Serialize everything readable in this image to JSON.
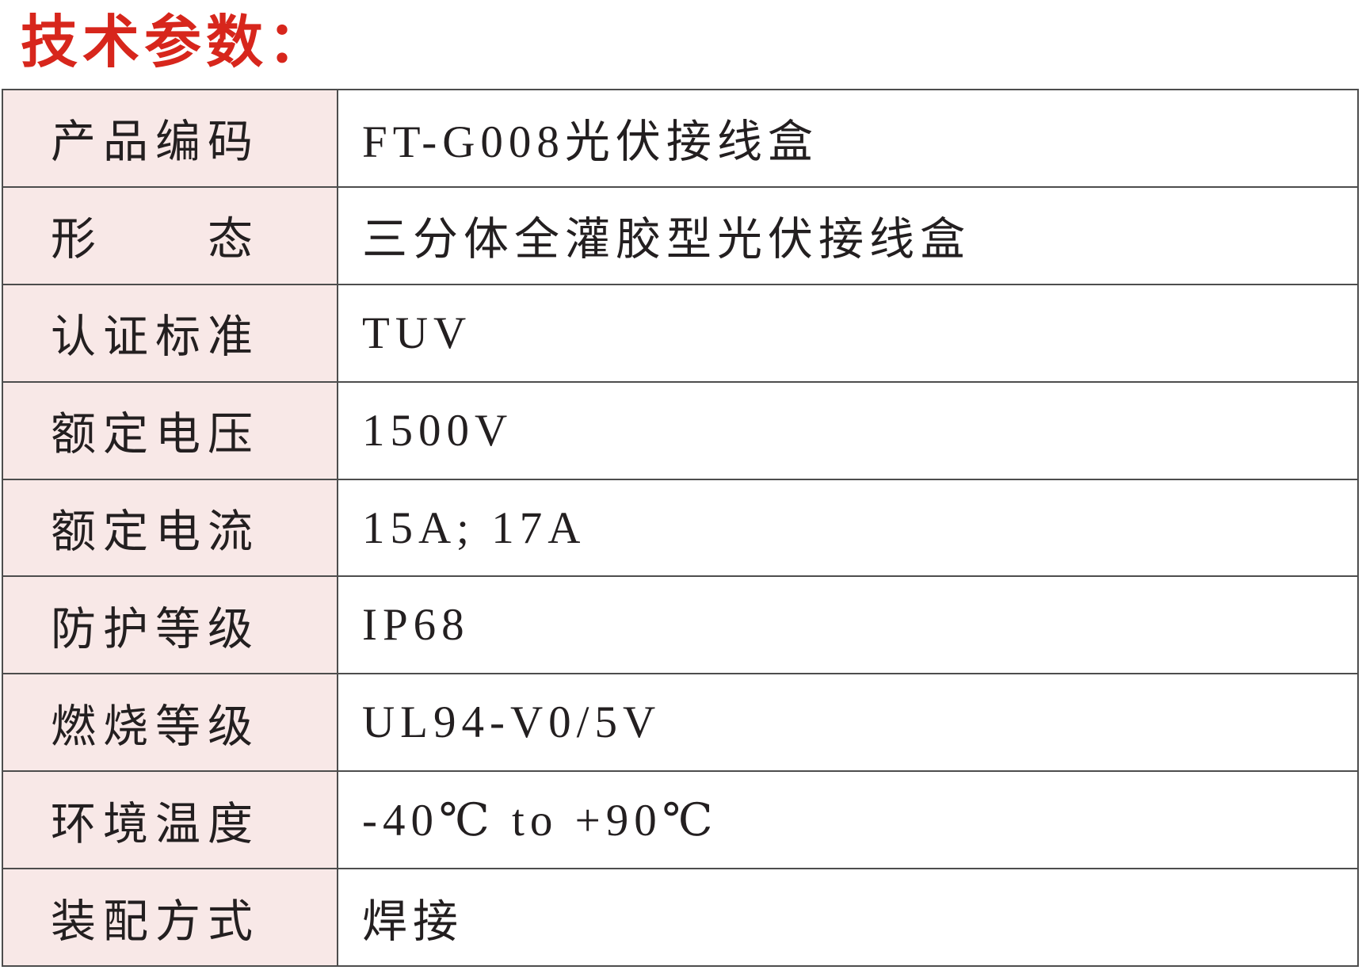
{
  "title": {
    "text": "技术参数：",
    "color": "#d7261c"
  },
  "colors": {
    "label_bg": "#f8e8e7",
    "border": "#4d4d4d",
    "text": "#231f20",
    "accent_red": "#d7261c"
  },
  "table": {
    "rows": [
      {
        "label": "产品编码",
        "value": "FT-G008光伏接线盒"
      },
      {
        "label": "形　　态",
        "value": "三分体全灌胶型光伏接线盒"
      },
      {
        "label": "认证标准",
        "value": "TUV"
      },
      {
        "label": "额定电压",
        "value": "1500V"
      },
      {
        "label": "额定电流",
        "value": "15A; 17A"
      },
      {
        "label": "防护等级",
        "value": "IP68"
      },
      {
        "label": "燃烧等级",
        "value": "UL94-V0/5V"
      },
      {
        "label": "环境温度",
        "value": "-40℃ to +90℃"
      },
      {
        "label": "装配方式",
        "value": "焊接"
      }
    ]
  }
}
